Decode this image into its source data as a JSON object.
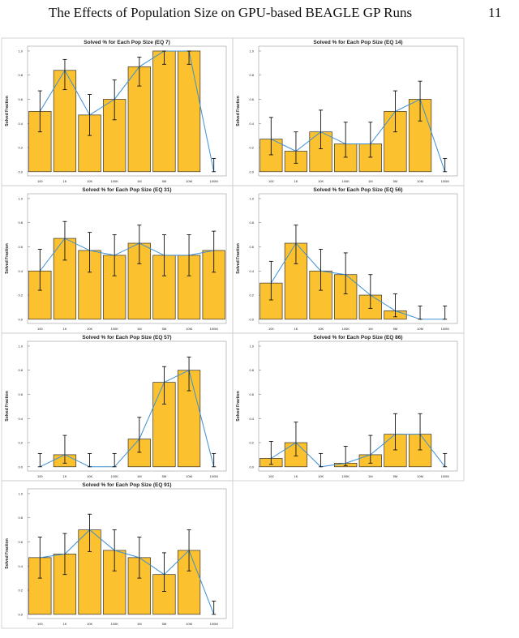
{
  "header": {
    "title": "The Effects of Population Size on GPU-based BEAGLE GP Runs",
    "page": "11"
  },
  "chart_data": [
    {
      "type": "bar",
      "title": "Solved % for Each Pop Size (EQ 7)",
      "ylabel": "Solved Fraction",
      "categories": [
        "100",
        "1K",
        "10K",
        "100K",
        "1M",
        "5M",
        "10M",
        "100M"
      ],
      "values": [
        0.5,
        0.84,
        0.47,
        0.6,
        0.87,
        1.0,
        1.0,
        0.0
      ],
      "ci_low": [
        0.33,
        0.68,
        0.3,
        0.43,
        0.71,
        0.89,
        0.89,
        0.0
      ],
      "ci_high": [
        0.67,
        0.93,
        0.64,
        0.76,
        0.95,
        1.0,
        1.0,
        0.11
      ],
      "ylim": [
        -0.035,
        1.04
      ],
      "yticks": [
        {
          "value": 0,
          "label": "0.0"
        },
        {
          "value": 0.2,
          "label": "0.2"
        },
        {
          "value": 0.4,
          "label": "0.4"
        },
        {
          "value": 0.6,
          "label": "0.6"
        },
        {
          "value": 0.8,
          "label": "0.8"
        },
        {
          "value": 1,
          "label": "1.0"
        }
      ],
      "color": "#fbc12e",
      "line_color": "#3d8fd6"
    },
    {
      "type": "bar",
      "title": "Solved % for Each Pop Size (EQ 14)",
      "ylabel": "Solved Fraction",
      "categories": [
        "100",
        "1K",
        "10K",
        "100K",
        "1M",
        "5M",
        "10M",
        "100M"
      ],
      "values": [
        0.27,
        0.17,
        0.33,
        0.23,
        0.23,
        0.5,
        0.6,
        0.0
      ],
      "ci_low": [
        0.14,
        0.07,
        0.19,
        0.12,
        0.12,
        0.33,
        0.42,
        0.0
      ],
      "ci_high": [
        0.45,
        0.33,
        0.51,
        0.41,
        0.41,
        0.67,
        0.75,
        0.11
      ],
      "ylim": [
        -0.035,
        1.04
      ],
      "yticks": [
        {
          "value": 0,
          "label": "0.0"
        },
        {
          "value": 0.2,
          "label": "0.2"
        },
        {
          "value": 0.4,
          "label": "0.4"
        },
        {
          "value": 0.6,
          "label": "0.6"
        },
        {
          "value": 0.8,
          "label": "0.8"
        },
        {
          "value": 1,
          "label": "1.0"
        }
      ],
      "color": "#fbc12e",
      "line_color": "#3d8fd6"
    },
    {
      "type": "bar",
      "title": "Solved % for Each Pop Size (EQ 31)",
      "ylabel": "Solved Fraction",
      "categories": [
        "100",
        "1K",
        "10K",
        "100K",
        "1M",
        "5M",
        "10M",
        "100M"
      ],
      "values": [
        0.4,
        0.67,
        0.57,
        0.53,
        0.63,
        0.53,
        0.53,
        0.57
      ],
      "ci_low": [
        0.24,
        0.49,
        0.39,
        0.36,
        0.46,
        0.36,
        0.36,
        0.39
      ],
      "ci_high": [
        0.58,
        0.81,
        0.72,
        0.7,
        0.78,
        0.7,
        0.7,
        0.73
      ],
      "ylim": [
        -0.035,
        1.04
      ],
      "yticks": [
        {
          "value": 0,
          "label": "0.0"
        },
        {
          "value": 0.2,
          "label": "0.2"
        },
        {
          "value": 0.4,
          "label": "0.4"
        },
        {
          "value": 0.6,
          "label": "0.6"
        },
        {
          "value": 0.8,
          "label": "0.8"
        },
        {
          "value": 1,
          "label": "1.0"
        }
      ],
      "color": "#fbc12e",
      "line_color": "#3d8fd6"
    },
    {
      "type": "bar",
      "title": "Solved % for Each Pop Size (EQ 56)",
      "ylabel": "Solved Fraction",
      "categories": [
        "100",
        "1K",
        "10K",
        "100K",
        "1M",
        "5M",
        "10M",
        "100M"
      ],
      "values": [
        0.3,
        0.63,
        0.4,
        0.37,
        0.2,
        0.07,
        0.0,
        0.0
      ],
      "ci_low": [
        0.16,
        0.46,
        0.24,
        0.21,
        0.09,
        0.02,
        0.0,
        0.0
      ],
      "ci_high": [
        0.48,
        0.78,
        0.58,
        0.55,
        0.37,
        0.21,
        0.11,
        0.11
      ],
      "ylim": [
        -0.035,
        1.04
      ],
      "yticks": [
        {
          "value": 0,
          "label": "0.0"
        },
        {
          "value": 0.2,
          "label": "0.2"
        },
        {
          "value": 0.4,
          "label": "0.4"
        },
        {
          "value": 0.6,
          "label": "0.6"
        },
        {
          "value": 0.8,
          "label": "0.8"
        },
        {
          "value": 1,
          "label": "1.0"
        }
      ],
      "color": "#fbc12e",
      "line_color": "#3d8fd6"
    },
    {
      "type": "bar",
      "title": "Solved % for Each Pop Size (EQ 57)",
      "ylabel": "Solved Fraction",
      "categories": [
        "100",
        "1K",
        "10K",
        "100K",
        "1M",
        "5M",
        "10M",
        "100M"
      ],
      "values": [
        0.0,
        0.1,
        0.0,
        0.0,
        0.23,
        0.7,
        0.8,
        0.0
      ],
      "ci_low": [
        0.0,
        0.03,
        0.0,
        0.0,
        0.12,
        0.52,
        0.63,
        0.0
      ],
      "ci_high": [
        0.11,
        0.26,
        0.11,
        0.11,
        0.41,
        0.83,
        0.91,
        0.11
      ],
      "ylim": [
        -0.035,
        1.04
      ],
      "yticks": [
        {
          "value": 0,
          "label": "0.0"
        },
        {
          "value": 0.2,
          "label": "0.2"
        },
        {
          "value": 0.4,
          "label": "0.4"
        },
        {
          "value": 0.6,
          "label": "0.6"
        },
        {
          "value": 0.8,
          "label": "0.8"
        },
        {
          "value": 1,
          "label": "1.0"
        }
      ],
      "color": "#fbc12e",
      "line_color": "#3d8fd6"
    },
    {
      "type": "bar",
      "title": "Solved % for Each Pop Size (EQ 86)",
      "ylabel": "Solved Fraction",
      "categories": [
        "100",
        "1K",
        "10K",
        "100K",
        "1M",
        "5M",
        "10M",
        "100M"
      ],
      "values": [
        0.07,
        0.2,
        0.0,
        0.03,
        0.1,
        0.27,
        0.27,
        0.0
      ],
      "ci_low": [
        0.02,
        0.09,
        0.0,
        0.01,
        0.03,
        0.14,
        0.14,
        0.0
      ],
      "ci_high": [
        0.21,
        0.37,
        0.11,
        0.17,
        0.26,
        0.44,
        0.44,
        0.11
      ],
      "ylim": [
        -0.035,
        1.04
      ],
      "yticks": [
        {
          "value": 0,
          "label": "0.0"
        },
        {
          "value": 0.2,
          "label": "0.2"
        },
        {
          "value": 0.4,
          "label": "0.4"
        },
        {
          "value": 0.6,
          "label": "0.6"
        },
        {
          "value": 0.8,
          "label": "0.8"
        },
        {
          "value": 1,
          "label": "1.0"
        }
      ],
      "color": "#fbc12e",
      "line_color": "#3d8fd6"
    },
    {
      "type": "bar",
      "title": "Solved % for Each Pop Size (EQ 91)",
      "ylabel": "Solved Fraction",
      "categories": [
        "100",
        "1K",
        "10K",
        "100K",
        "1M",
        "5M",
        "10M",
        "100M"
      ],
      "values": [
        0.47,
        0.5,
        0.7,
        0.53,
        0.47,
        0.33,
        0.53,
        0.0
      ],
      "ci_low": [
        0.3,
        0.33,
        0.52,
        0.36,
        0.3,
        0.19,
        0.36,
        0.0
      ],
      "ci_high": [
        0.64,
        0.67,
        0.83,
        0.7,
        0.64,
        0.51,
        0.7,
        0.11
      ],
      "ylim": [
        -0.035,
        1.04
      ],
      "yticks": [
        {
          "value": 0,
          "label": "0.0"
        },
        {
          "value": 0.2,
          "label": "0.2"
        },
        {
          "value": 0.4,
          "label": "0.4"
        },
        {
          "value": 0.6,
          "label": "0.6"
        },
        {
          "value": 0.8,
          "label": "0.8"
        },
        {
          "value": 1,
          "label": "1.0"
        }
      ],
      "color": "#fbc12e",
      "line_color": "#3d8fd6"
    }
  ]
}
